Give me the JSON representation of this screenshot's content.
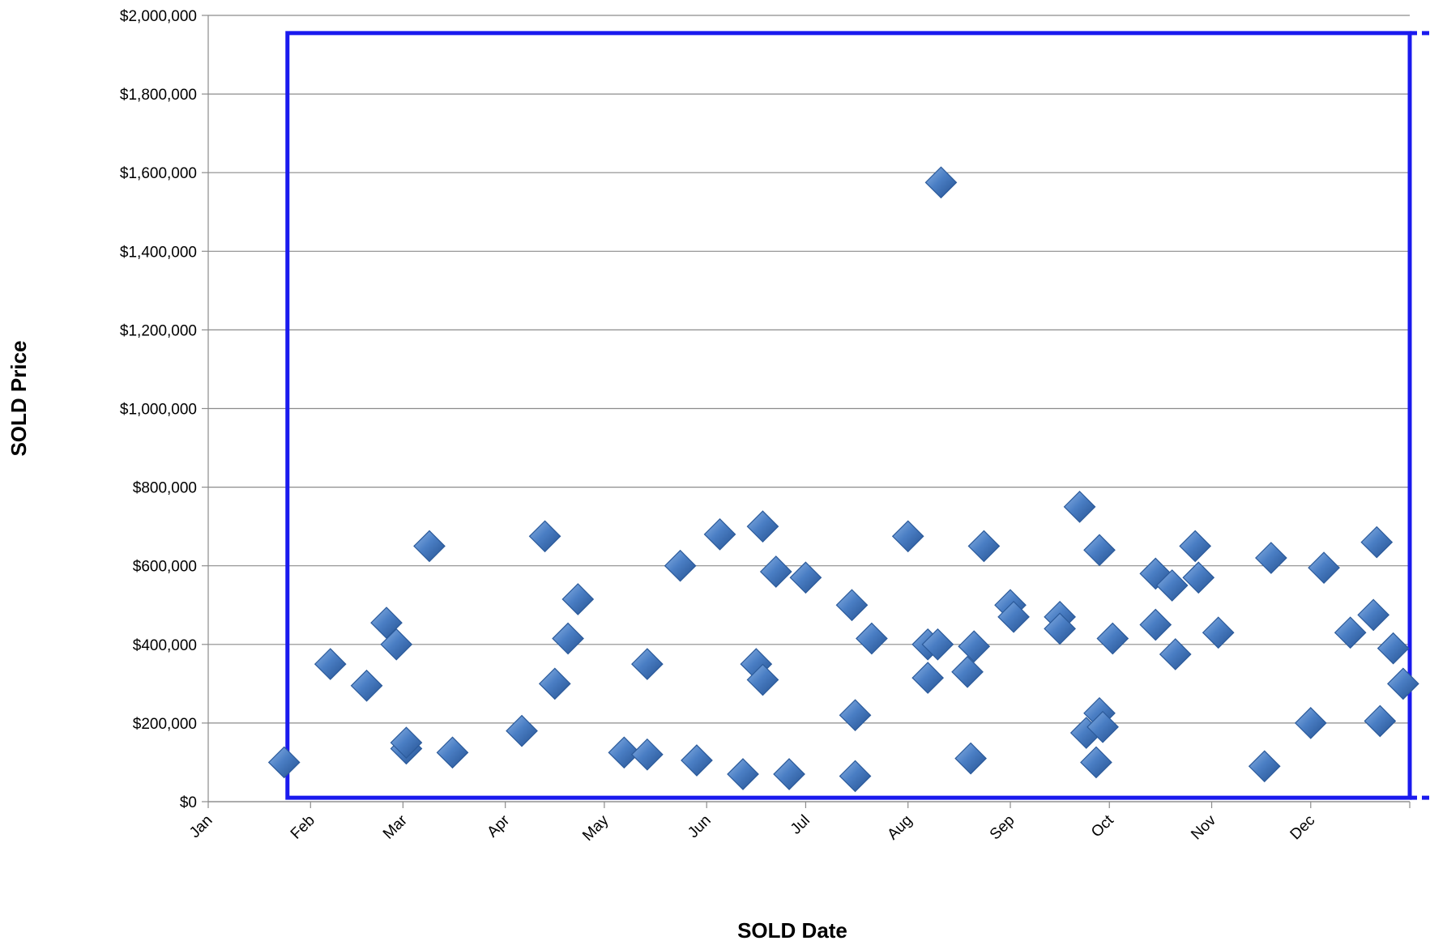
{
  "chart_data": {
    "type": "scatter",
    "title": "",
    "xlabel": "SOLD Date",
    "ylabel": "SOLD Price",
    "x_ticks": [
      "Jan",
      "Feb",
      "Mar",
      "Apr",
      "May",
      "Jun",
      "Jul",
      "Aug",
      "Sep",
      "Oct",
      "Nov",
      "Dec"
    ],
    "x_range": [
      "Jan 1",
      "Dec 31"
    ],
    "ylim": [
      0,
      2000000
    ],
    "y_ticks": [
      "$0",
      "$200,000",
      "$400,000",
      "$600,000",
      "$800,000",
      "$1,000,000",
      "$1,200,000",
      "$1,400,000",
      "$1,600,000",
      "$1,800,000",
      "$2,000,000"
    ],
    "grid": "horizontal",
    "marker": "diamond",
    "colors": {
      "marker": "#4a7ec4",
      "marker_edge": "#2b5a9a",
      "highlight_box": "#1a1aee",
      "grid": "#8c8c8c"
    },
    "highlight_box": {
      "x": [
        "Jan 25",
        "Dec 31"
      ],
      "y": [
        10000,
        1955000
      ],
      "style": "solid blue rectangle, dashed extension at right edge"
    },
    "points": [
      {
        "x": "Jan 24",
        "y": 100000
      },
      {
        "x": "Feb 7",
        "y": 350000
      },
      {
        "x": "Feb 18",
        "y": 295000
      },
      {
        "x": "Feb 24",
        "y": 455000
      },
      {
        "x": "Feb 27",
        "y": 400000
      },
      {
        "x": "Mar 2",
        "y": 135000
      },
      {
        "x": "Mar 2",
        "y": 150000
      },
      {
        "x": "Mar 9",
        "y": 650000
      },
      {
        "x": "Mar 16",
        "y": 125000
      },
      {
        "x": "Apr 6",
        "y": 180000
      },
      {
        "x": "Apr 13",
        "y": 675000
      },
      {
        "x": "Apr 16",
        "y": 300000
      },
      {
        "x": "Apr 20",
        "y": 415000
      },
      {
        "x": "Apr 23",
        "y": 515000
      },
      {
        "x": "May 7",
        "y": 125000
      },
      {
        "x": "May 14",
        "y": 120000
      },
      {
        "x": "May 14",
        "y": 350000
      },
      {
        "x": "May 24",
        "y": 600000
      },
      {
        "x": "May 29",
        "y": 105000
      },
      {
        "x": "Jun 5",
        "y": 680000
      },
      {
        "x": "Jun 12",
        "y": 70000
      },
      {
        "x": "Jun 16",
        "y": 350000
      },
      {
        "x": "Jun 18",
        "y": 700000
      },
      {
        "x": "Jun 18",
        "y": 310000
      },
      {
        "x": "Jun 22",
        "y": 585000
      },
      {
        "x": "Jun 26",
        "y": 70000
      },
      {
        "x": "Jul 1",
        "y": 570000
      },
      {
        "x": "Jul 15",
        "y": 500000
      },
      {
        "x": "Jul 16",
        "y": 220000
      },
      {
        "x": "Jul 16",
        "y": 65000
      },
      {
        "x": "Jul 21",
        "y": 415000
      },
      {
        "x": "Aug 1",
        "y": 675000
      },
      {
        "x": "Aug 7",
        "y": 400000
      },
      {
        "x": "Aug 7",
        "y": 315000
      },
      {
        "x": "Aug 10",
        "y": 400000
      },
      {
        "x": "Aug 11",
        "y": 1575000
      },
      {
        "x": "Aug 19",
        "y": 330000
      },
      {
        "x": "Aug 20",
        "y": 110000
      },
      {
        "x": "Aug 21",
        "y": 395000
      },
      {
        "x": "Aug 24",
        "y": 650000
      },
      {
        "x": "Sep 1",
        "y": 500000
      },
      {
        "x": "Sep 2",
        "y": 470000
      },
      {
        "x": "Sep 16",
        "y": 470000
      },
      {
        "x": "Sep 16",
        "y": 440000
      },
      {
        "x": "Sep 22",
        "y": 750000
      },
      {
        "x": "Sep 24",
        "y": 175000
      },
      {
        "x": "Sep 27",
        "y": 100000
      },
      {
        "x": "Sep 28",
        "y": 225000
      },
      {
        "x": "Sep 28",
        "y": 640000
      },
      {
        "x": "Sep 29",
        "y": 190000
      },
      {
        "x": "Oct 2",
        "y": 415000
      },
      {
        "x": "Oct 15",
        "y": 580000
      },
      {
        "x": "Oct 15",
        "y": 450000
      },
      {
        "x": "Oct 20",
        "y": 550000
      },
      {
        "x": "Oct 21",
        "y": 375000
      },
      {
        "x": "Oct 27",
        "y": 650000
      },
      {
        "x": "Oct 28",
        "y": 570000
      },
      {
        "x": "Nov 3",
        "y": 430000
      },
      {
        "x": "Nov 17",
        "y": 90000
      },
      {
        "x": "Nov 19",
        "y": 620000
      },
      {
        "x": "Dec 1",
        "y": 200000
      },
      {
        "x": "Dec 5",
        "y": 595000
      },
      {
        "x": "Dec 13",
        "y": 430000
      },
      {
        "x": "Dec 20",
        "y": 475000
      },
      {
        "x": "Dec 21",
        "y": 660000
      },
      {
        "x": "Dec 22",
        "y": 205000
      },
      {
        "x": "Dec 26",
        "y": 390000
      },
      {
        "x": "Dec 29",
        "y": 300000
      }
    ]
  }
}
